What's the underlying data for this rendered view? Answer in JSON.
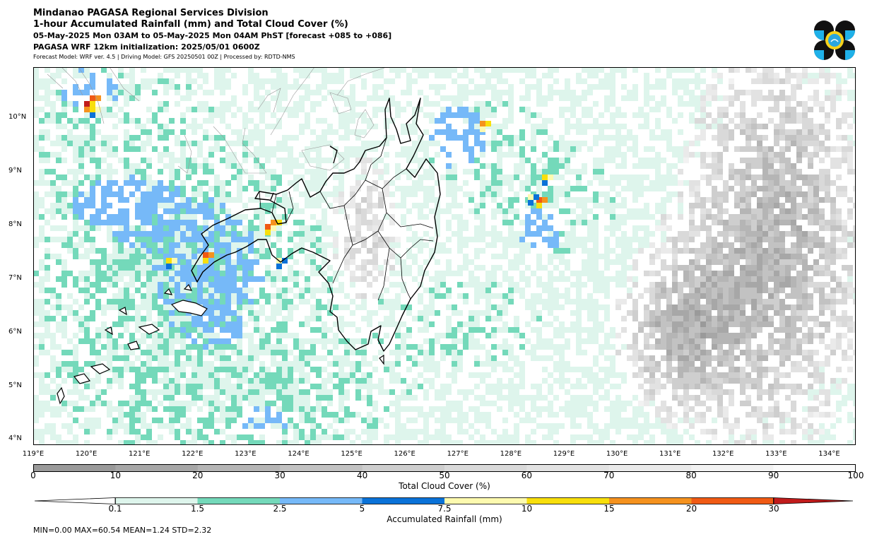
{
  "header": {
    "line1": "Mindanao PAGASA Regional Services Division",
    "line2": "1-hour Accumulated Rainfall (mm) and Total Cloud Cover (%)",
    "line3": "05-May-2025 Mon 03AM to 05-May-2025 Mon 04AM PhST [forecast +085 to +086]",
    "line4": "PAGASA WRF 12km initialization: 2025/05/01 0600Z",
    "line5": "Forecast Model: WRF ver. 4.5 | Driving Model: GFS 20250501 00Z | Processed by: RDTD-NMS"
  },
  "map": {
    "lon_range": [
      119,
      134.5
    ],
    "lat_range": [
      3.9,
      10.95
    ],
    "lat_ticks": [
      "10°N",
      "9°N",
      "8°N",
      "7°N",
      "6°N",
      "5°N",
      "4°N"
    ],
    "lat_values": [
      10,
      9,
      8,
      7,
      6,
      5,
      4
    ],
    "lon_ticks": [
      "119°E",
      "120°E",
      "121°E",
      "122°E",
      "123°E",
      "124°E",
      "125°E",
      "126°E",
      "127°E",
      "128°E",
      "129°E",
      "130°E",
      "131°E",
      "132°E",
      "133°E",
      "134°E"
    ],
    "lon_values": [
      119,
      120,
      121,
      122,
      123,
      124,
      125,
      126,
      127,
      128,
      129,
      130,
      131,
      132,
      133,
      134
    ]
  },
  "cloud_colorbar": {
    "title": "Total Cloud Cover (%)",
    "ticks": [
      "0",
      "10",
      "20",
      "30",
      "40",
      "50",
      "60",
      "70",
      "80",
      "90",
      "100"
    ],
    "colors": [
      "#9a9a9a",
      "#a7a7a7",
      "#b5b5b5",
      "#c2c2c2",
      "#cecece",
      "#d9d9d9",
      "#e2e2e2",
      "#eaeaea",
      "#f2f2f2",
      "#fafafa"
    ]
  },
  "rain_colorbar": {
    "title": "Accumulated Rainfall (mm)",
    "ticks": [
      "0.1",
      "1.5",
      "2.5",
      "5",
      "7.5",
      "10",
      "15",
      "20",
      "30"
    ],
    "colors": [
      "#def5ec",
      "#74d9ba",
      "#76b9f8",
      "#0a72d8",
      "#fdfaaf",
      "#f8df0c",
      "#f5921e",
      "#f05a14",
      "#c11b1b"
    ]
  },
  "stats": {
    "text": "MIN=0.00   MAX=60.54   MEAN=1.24   STD=2.32"
  }
}
